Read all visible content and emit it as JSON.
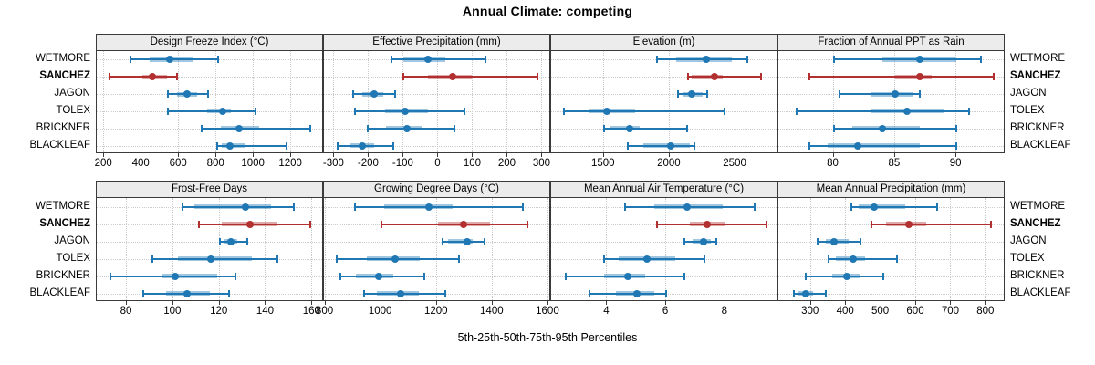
{
  "title": "Annual Climate: competing",
  "caption": "5th-25th-50th-75th-95th Percentiles",
  "percentile_labels": [
    "5th",
    "25th",
    "50th",
    "75th",
    "95th"
  ],
  "sites": [
    "WETMORE",
    "SANCHEZ",
    "JAGON",
    "TOLEX",
    "BRICKNER",
    "BLACKLEAF"
  ],
  "highlight_site": "SANCHEZ",
  "colors": {
    "series": "#1f77b4",
    "highlight": "#b23030",
    "gridline": "#c9c9c9",
    "header_bg": "#ececec",
    "border": "#3a3a3a",
    "text": "#000000"
  },
  "chart_data": {
    "type": "percentile_dotplot",
    "layout": {
      "rows": 2,
      "cols": 4,
      "legend": "none",
      "grid": "dotted at ticks"
    },
    "note": "Each bar shows 5th-25th-50th-75th-95th percentiles; SANCHEZ row highlighted red/bold",
    "panels": [
      {
        "title": "Design Freeze Index (°C)",
        "xlim": [
          160,
          1375
        ],
        "ticks": [
          200,
          400,
          600,
          800,
          1000,
          1200
        ],
        "values": [
          [
            340,
            445,
            550,
            675,
            810
          ],
          [
            230,
            405,
            460,
            535,
            590
          ],
          [
            540,
            590,
            645,
            695,
            755
          ],
          [
            540,
            750,
            835,
            875,
            1010
          ],
          [
            720,
            825,
            920,
            1030,
            1300
          ],
          [
            805,
            830,
            870,
            950,
            1175
          ]
        ]
      },
      {
        "title": "Effective Precipitation (mm)",
        "xlim": [
          -330,
          325
        ],
        "ticks": [
          -300,
          -200,
          -100,
          0,
          100,
          200,
          300
        ],
        "values": [
          [
            -135,
            -100,
            -30,
            20,
            135
          ],
          [
            -100,
            -30,
            40,
            95,
            285
          ],
          [
            -245,
            -220,
            -185,
            -160,
            -125
          ],
          [
            -240,
            -155,
            -95,
            -30,
            75
          ],
          [
            -205,
            -150,
            -90,
            -45,
            45
          ],
          [
            -290,
            -255,
            -220,
            -185,
            -130
          ]
        ]
      },
      {
        "title": "Elevation (m)",
        "xlim": [
          1100,
          2825
        ],
        "ticks": [
          1500,
          2000,
          2500
        ],
        "values": [
          [
            1905,
            2050,
            2280,
            2470,
            2590
          ],
          [
            2140,
            2165,
            2340,
            2400,
            2695
          ],
          [
            2065,
            2095,
            2170,
            2250,
            2285
          ],
          [
            1200,
            1390,
            1520,
            1740,
            2415
          ],
          [
            1500,
            1540,
            1695,
            1775,
            2135
          ],
          [
            1680,
            1800,
            2010,
            2150,
            2185
          ]
        ]
      },
      {
        "title": "Fraction of Annual PPT as Rain",
        "xlim": [
          75.5,
          94
        ],
        "ticks": [
          80,
          85,
          90
        ],
        "values": [
          [
            80,
            84,
            87,
            90,
            92
          ],
          [
            78,
            85,
            87,
            88,
            93
          ],
          [
            80.5,
            83,
            85,
            86.5,
            87
          ],
          [
            77,
            83,
            86,
            89,
            91
          ],
          [
            80,
            81.5,
            84,
            87,
            90
          ],
          [
            78,
            79.5,
            82,
            87,
            90
          ]
        ]
      },
      {
        "title": "Frost-Free Days",
        "xlim": [
          67,
          165
        ],
        "ticks": [
          80,
          100,
          120,
          140,
          160
        ],
        "values": [
          [
            104,
            109,
            131,
            142,
            152
          ],
          [
            111,
            121,
            133,
            145,
            159
          ],
          [
            120,
            122,
            125,
            127.5,
            132
          ],
          [
            91,
            102,
            116,
            134,
            145
          ],
          [
            73,
            95,
            101,
            119,
            127
          ],
          [
            87,
            97,
            106,
            116,
            124
          ]
        ]
      },
      {
        "title": "Growing Degree Days (°C)",
        "xlim": [
          795,
          1610
        ],
        "ticks": [
          800,
          1000,
          1200,
          1400,
          1600
        ],
        "values": [
          [
            905,
            1010,
            1170,
            1255,
            1510
          ],
          [
            1000,
            1205,
            1295,
            1390,
            1525
          ],
          [
            1220,
            1240,
            1310,
            1330,
            1370
          ],
          [
            840,
            950,
            1050,
            1140,
            1280
          ],
          [
            855,
            910,
            990,
            1045,
            1155
          ],
          [
            940,
            985,
            1070,
            1135,
            1230
          ]
        ]
      },
      {
        "title": "Mean Annual Air Temperature (°C)",
        "xlim": [
          2.1,
          9.8
        ],
        "ticks": [
          4,
          6,
          8
        ],
        "values": [
          [
            4.6,
            5.6,
            6.7,
            7.9,
            9.0
          ],
          [
            5.7,
            6.8,
            7.4,
            8.0,
            9.4
          ],
          [
            6.6,
            6.9,
            7.25,
            7.5,
            7.7
          ],
          [
            3.9,
            4.4,
            5.35,
            6.3,
            7.3
          ],
          [
            2.6,
            3.9,
            4.7,
            5.3,
            6.6
          ],
          [
            3.4,
            4.3,
            5.0,
            5.6,
            6.0
          ]
        ]
      },
      {
        "title": "Mean Annual Precipitation (mm)",
        "xlim": [
          207,
          855
        ],
        "ticks": [
          300,
          400,
          500,
          600,
          700,
          800
        ],
        "values": [
          [
            415,
            435,
            480,
            570,
            660
          ],
          [
            473,
            515,
            580,
            628,
            814
          ],
          [
            320,
            342,
            365,
            408,
            440
          ],
          [
            350,
            372,
            420,
            455,
            545
          ],
          [
            285,
            360,
            402,
            440,
            507
          ],
          [
            250,
            264,
            285,
            307,
            342
          ]
        ]
      }
    ]
  }
}
